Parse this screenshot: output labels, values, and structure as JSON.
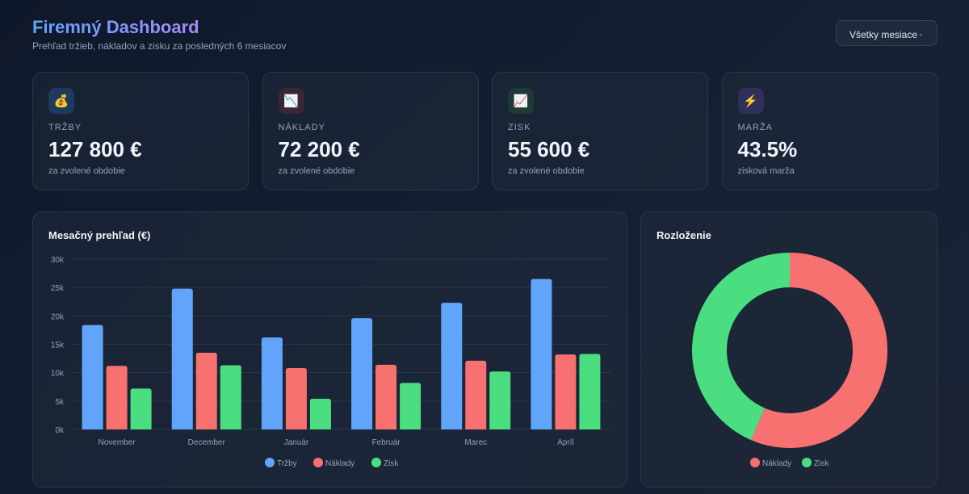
{
  "header": {
    "title": "Firemný Dashboard",
    "subtitle": "Prehľad tržieb, nákladov a zisku za posledných 6 mesiacov",
    "filter": "Všetky mesiace"
  },
  "cards": [
    {
      "icon": "money-bag-icon",
      "glyph": "💰",
      "label": "TRŽBY",
      "value": "127 800 €",
      "note": "za zvolené obdobie",
      "bg": "#1e3a5f"
    },
    {
      "icon": "chart-down-icon",
      "glyph": "📉",
      "label": "NÁKLADY",
      "value": "72 200 €",
      "note": "za zvolené obdobie",
      "bg": "#3b2633"
    },
    {
      "icon": "chart-up-icon",
      "glyph": "📈",
      "label": "ZISK",
      "value": "55 600 €",
      "note": "za zvolené obdobie",
      "bg": "#1d3b36"
    },
    {
      "icon": "lightning-icon",
      "glyph": "⚡",
      "label": "MARŽA",
      "value": "43.5%",
      "note": "zisková marža",
      "bg": "#2e2f5a"
    }
  ],
  "chart_data": [
    {
      "type": "bar",
      "title": "Mesačný prehľad (€)",
      "categories": [
        "November",
        "December",
        "Január",
        "Február",
        "Marec",
        "Apríl"
      ],
      "yticks": [
        "0k",
        "5k",
        "10k",
        "15k",
        "20k",
        "25k",
        "30k"
      ],
      "ylim": [
        0,
        30000
      ],
      "legend": "bottom",
      "series": [
        {
          "name": "Tržby",
          "color": "#60a5fa",
          "values": [
            18400,
            24800,
            16200,
            19600,
            22300,
            26500
          ]
        },
        {
          "name": "Náklady",
          "color": "#f87171",
          "values": [
            11200,
            13500,
            10800,
            11400,
            12100,
            13200
          ]
        },
        {
          "name": "Zisk",
          "color": "#4ade80",
          "values": [
            7200,
            11300,
            5400,
            8200,
            10200,
            13300
          ]
        }
      ]
    },
    {
      "type": "pie",
      "title": "Rozloženie",
      "legend": "bottom",
      "slices": [
        {
          "name": "Náklady",
          "value": 72200,
          "color": "#f87171"
        },
        {
          "name": "Zisk",
          "value": 55600,
          "color": "#4ade80"
        }
      ]
    }
  ]
}
